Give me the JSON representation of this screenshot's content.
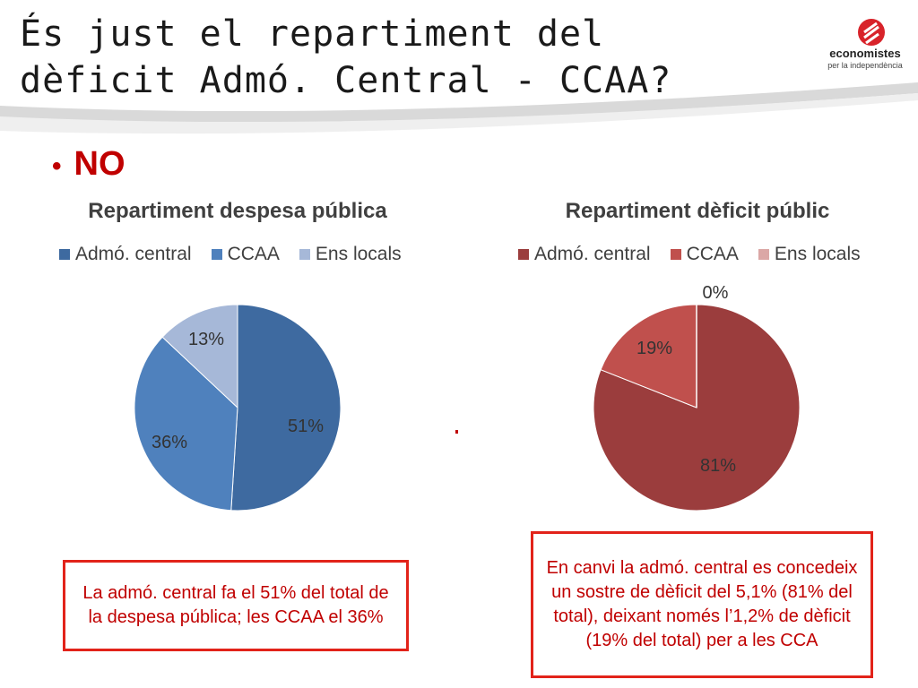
{
  "header": {
    "title_line1": "És just el repartiment del",
    "title_line2": "dèficit Admó. Central - CCAA?",
    "logo_name": "economistes",
    "logo_tagline": "per la independència"
  },
  "bullet": {
    "text": "NO"
  },
  "chart_data": [
    {
      "type": "pie",
      "title": "Repartiment despesa pública",
      "categories": [
        "Admó. central",
        "CCAA",
        "Ens locals"
      ],
      "values": [
        51,
        36,
        13
      ],
      "labels": [
        "51%",
        "36%",
        "13%"
      ],
      "colors": [
        "#3e6aa0",
        "#4f81bd",
        "#a6b8d8"
      ],
      "legend_position": "top"
    },
    {
      "type": "pie",
      "title": "Repartiment dèficit públic",
      "categories": [
        "Admó. central",
        "CCAA",
        "Ens locals"
      ],
      "values": [
        81,
        19,
        0
      ],
      "labels": [
        "81%",
        "19%",
        "0%"
      ],
      "colors": [
        "#9b3d3d",
        "#c0504d",
        "#dba7a6"
      ],
      "legend_position": "top"
    }
  ],
  "notes": {
    "left": "La admó. central fa el 51% del total de la despesa pública; les CCAA el 36%",
    "right": "En canvi la admó. central es concedeix un sostre de dèficit del 5,1% (81% del total), deixant només l’1,2% de dèficit (19% del total) per a les CCA"
  }
}
